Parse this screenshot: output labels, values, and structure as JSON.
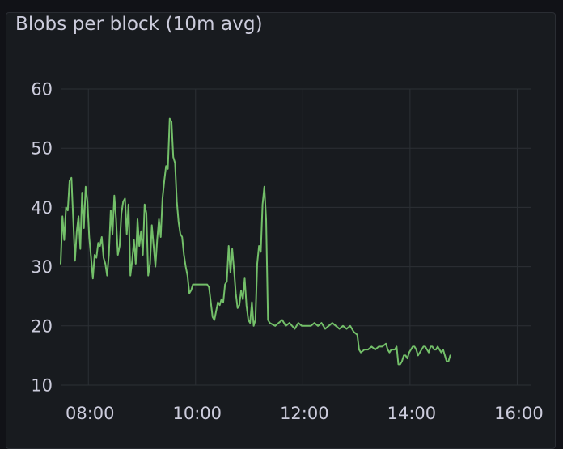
{
  "panel": {
    "title": "Blobs per block (10m avg)"
  },
  "chart_data": {
    "type": "line",
    "title": "Blobs per block (10m avg)",
    "xlabel": "",
    "ylabel": "",
    "ylim": [
      10,
      60
    ],
    "xlim": [
      "07:29",
      "16:15"
    ],
    "grid": true,
    "legend": "none",
    "x_tick_labels": [
      "08:00",
      "10:00",
      "12:00",
      "14:00",
      "16:00"
    ],
    "y_tick_labels": [
      "10",
      "20",
      "30",
      "40",
      "50",
      "60"
    ],
    "series": [
      {
        "color": "#73bf69",
        "points": [
          [
            "07:29",
            30.5
          ],
          [
            "07:31",
            38.5
          ],
          [
            "07:33",
            34.5
          ],
          [
            "07:35",
            40
          ],
          [
            "07:37",
            39.5
          ],
          [
            "07:39",
            44.5
          ],
          [
            "07:41",
            45
          ],
          [
            "07:43",
            38
          ],
          [
            "07:45",
            31
          ],
          [
            "07:47",
            36
          ],
          [
            "07:49",
            38.5
          ],
          [
            "07:51",
            33
          ],
          [
            "07:53",
            42.5
          ],
          [
            "07:55",
            36.5
          ],
          [
            "07:57",
            43.5
          ],
          [
            "07:59",
            41
          ],
          [
            "08:01",
            35
          ],
          [
            "08:03",
            31.5
          ],
          [
            "08:05",
            28
          ],
          [
            "08:07",
            32
          ],
          [
            "08:09",
            31.5
          ],
          [
            "08:11",
            34
          ],
          [
            "08:13",
            33.5
          ],
          [
            "08:15",
            35
          ],
          [
            "08:17",
            31.5
          ],
          [
            "08:19",
            30.5
          ],
          [
            "08:21",
            28.5
          ],
          [
            "08:23",
            32
          ],
          [
            "08:25",
            39.5
          ],
          [
            "08:27",
            35.5
          ],
          [
            "08:29",
            42
          ],
          [
            "08:31",
            38
          ],
          [
            "08:33",
            32
          ],
          [
            "08:35",
            33.5
          ],
          [
            "08:37",
            39
          ],
          [
            "08:39",
            41
          ],
          [
            "08:41",
            41.5
          ],
          [
            "08:43",
            35.5
          ],
          [
            "08:45",
            40.5
          ],
          [
            "08:47",
            28.5
          ],
          [
            "08:49",
            31
          ],
          [
            "08:51",
            34.5
          ],
          [
            "08:53",
            30.5
          ],
          [
            "08:55",
            38
          ],
          [
            "08:57",
            33.5
          ],
          [
            "08:59",
            36
          ],
          [
            "09:01",
            32
          ],
          [
            "09:03",
            40.5
          ],
          [
            "09:05",
            39
          ],
          [
            "09:07",
            28.5
          ],
          [
            "09:09",
            30.5
          ],
          [
            "09:11",
            37
          ],
          [
            "09:13",
            33.5
          ],
          [
            "09:15",
            30
          ],
          [
            "09:17",
            34.5
          ],
          [
            "09:19",
            38
          ],
          [
            "09:21",
            35
          ],
          [
            "09:23",
            41.5
          ],
          [
            "09:25",
            44.5
          ],
          [
            "09:27",
            47
          ],
          [
            "09:29",
            46.5
          ],
          [
            "09:31",
            55
          ],
          [
            "09:33",
            54.5
          ],
          [
            "09:35",
            48.5
          ],
          [
            "09:37",
            47.5
          ],
          [
            "09:39",
            41
          ],
          [
            "09:41",
            37.5
          ],
          [
            "09:43",
            35.5
          ],
          [
            "09:45",
            35
          ],
          [
            "09:47",
            32
          ],
          [
            "09:49",
            30
          ],
          [
            "09:51",
            28.5
          ],
          [
            "09:53",
            25.5
          ],
          [
            "09:55",
            26
          ],
          [
            "09:57",
            27
          ],
          [
            "10:05",
            27
          ],
          [
            "10:13",
            27
          ],
          [
            "10:15",
            26.5
          ],
          [
            "10:17",
            24
          ],
          [
            "10:19",
            21.5
          ],
          [
            "10:21",
            21
          ],
          [
            "10:23",
            22.5
          ],
          [
            "10:25",
            24
          ],
          [
            "10:27",
            23.5
          ],
          [
            "10:29",
            24.5
          ],
          [
            "10:31",
            24
          ],
          [
            "10:33",
            27
          ],
          [
            "10:35",
            27.5
          ],
          [
            "10:37",
            33.5
          ],
          [
            "10:39",
            29
          ],
          [
            "10:41",
            33
          ],
          [
            "10:43",
            29.5
          ],
          [
            "10:45",
            25.5
          ],
          [
            "10:47",
            23
          ],
          [
            "10:49",
            23.5
          ],
          [
            "10:51",
            26
          ],
          [
            "10:53",
            24.5
          ],
          [
            "10:55",
            28
          ],
          [
            "10:57",
            23.5
          ],
          [
            "10:59",
            21
          ],
          [
            "11:01",
            20.5
          ],
          [
            "11:03",
            24
          ],
          [
            "11:05",
            20
          ],
          [
            "11:07",
            21
          ],
          [
            "11:09",
            30.5
          ],
          [
            "11:11",
            33.5
          ],
          [
            "11:13",
            32.5
          ],
          [
            "11:15",
            40.5
          ],
          [
            "11:17",
            43.5
          ],
          [
            "11:19",
            38
          ],
          [
            "11:21",
            21
          ],
          [
            "11:23",
            20.5
          ],
          [
            "11:29",
            20
          ],
          [
            "11:33",
            20.5
          ],
          [
            "11:37",
            21
          ],
          [
            "11:41",
            20
          ],
          [
            "11:45",
            20.5
          ],
          [
            "11:51",
            19.5
          ],
          [
            "11:55",
            20.5
          ],
          [
            "11:59",
            20
          ],
          [
            "12:04",
            20
          ],
          [
            "12:09",
            20
          ],
          [
            "12:13",
            20.5
          ],
          [
            "12:17",
            20
          ],
          [
            "12:21",
            20.5
          ],
          [
            "12:25",
            19.5
          ],
          [
            "12:29",
            20
          ],
          [
            "12:33",
            20.5
          ],
          [
            "12:37",
            20
          ],
          [
            "12:41",
            19.5
          ],
          [
            "12:45",
            20
          ],
          [
            "12:49",
            19.5
          ],
          [
            "12:53",
            20
          ],
          [
            "12:57",
            19
          ],
          [
            "13:01",
            18.5
          ],
          [
            "13:03",
            16
          ],
          [
            "13:05",
            15.5
          ],
          [
            "13:09",
            16
          ],
          [
            "13:13",
            16
          ],
          [
            "13:17",
            16.5
          ],
          [
            "13:21",
            16
          ],
          [
            "13:25",
            16.5
          ],
          [
            "13:29",
            16.5
          ],
          [
            "13:33",
            17
          ],
          [
            "13:35",
            16
          ],
          [
            "13:37",
            15.5
          ],
          [
            "13:39",
            16
          ],
          [
            "13:43",
            16
          ],
          [
            "13:45",
            16.5
          ],
          [
            "13:47",
            13.5
          ],
          [
            "13:49",
            13.5
          ],
          [
            "13:51",
            14
          ],
          [
            "13:53",
            15
          ],
          [
            "13:55",
            15
          ],
          [
            "13:57",
            14.5
          ],
          [
            "13:59",
            15.5
          ],
          [
            "14:01",
            16
          ],
          [
            "14:03",
            16.5
          ],
          [
            "14:05",
            16.5
          ],
          [
            "14:07",
            16
          ],
          [
            "14:09",
            15
          ],
          [
            "14:11",
            15.5
          ],
          [
            "14:13",
            16
          ],
          [
            "14:15",
            16.5
          ],
          [
            "14:17",
            16.5
          ],
          [
            "14:19",
            16
          ],
          [
            "14:21",
            15.5
          ],
          [
            "14:23",
            16.5
          ],
          [
            "14:25",
            16.5
          ],
          [
            "14:27",
            16
          ],
          [
            "14:29",
            16
          ],
          [
            "14:31",
            16.5
          ],
          [
            "14:33",
            16
          ],
          [
            "14:35",
            15.5
          ],
          [
            "14:37",
            16
          ],
          [
            "14:39",
            15
          ],
          [
            "14:41",
            14
          ],
          [
            "14:43",
            14
          ],
          [
            "14:45",
            15
          ]
        ]
      }
    ]
  }
}
